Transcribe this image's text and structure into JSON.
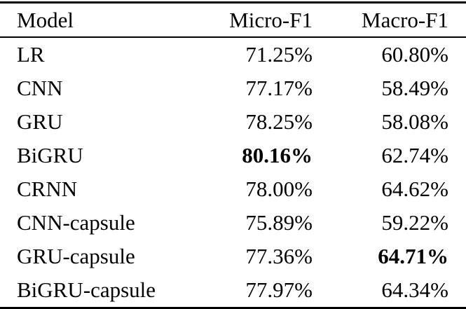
{
  "table": {
    "columns": [
      "Model",
      "Micro-F1",
      "Macro-F1"
    ],
    "rows": [
      {
        "model": "LR",
        "micro_f1": "71.25%",
        "macro_f1": "60.80%",
        "bold": null
      },
      {
        "model": "CNN",
        "micro_f1": "77.17%",
        "macro_f1": "58.49%",
        "bold": null
      },
      {
        "model": "GRU",
        "micro_f1": "78.25%",
        "macro_f1": "58.08%",
        "bold": null
      },
      {
        "model": "BiGRU",
        "micro_f1": "80.16%",
        "macro_f1": "62.74%",
        "bold": "micro_f1"
      },
      {
        "model": "CRNN",
        "micro_f1": "78.00%",
        "macro_f1": "64.62%",
        "bold": null
      },
      {
        "model": "CNN-capsule",
        "micro_f1": "75.89%",
        "macro_f1": "59.22%",
        "bold": null
      },
      {
        "model": "GRU-capsule",
        "micro_f1": "77.36%",
        "macro_f1": "64.71%",
        "bold": "macro_f1"
      },
      {
        "model": "BiGRU-capsule",
        "micro_f1": "77.97%",
        "macro_f1": "64.34%",
        "bold": null
      }
    ],
    "text_color": "#000000",
    "background_color": "#ffffff"
  }
}
